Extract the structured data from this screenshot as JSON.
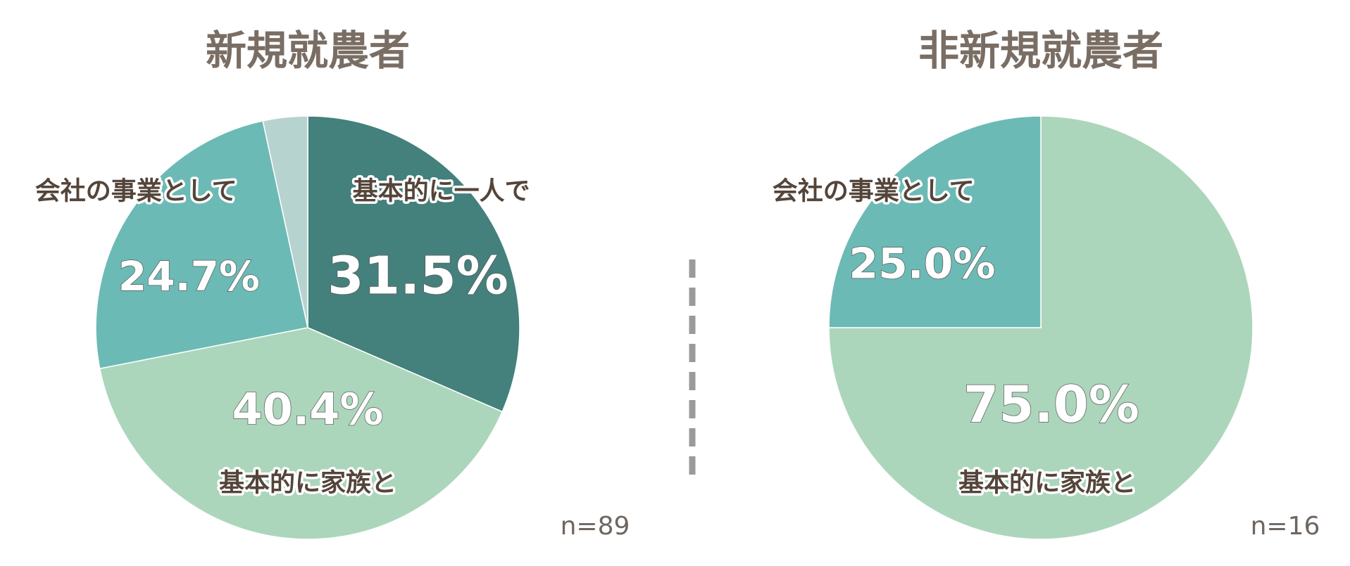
{
  "chart_data": [
    {
      "type": "pie",
      "title": "新規就農者",
      "categories": [
        "基本的に一人で",
        "基本的に家族と",
        "会社の事業として",
        null
      ],
      "values": [
        31.5,
        40.4,
        24.7,
        3.4
      ],
      "value_labels": [
        "31.5%",
        "40.4%",
        "24.7%",
        null
      ],
      "colors": [
        "#44807c",
        "#acd6bc",
        "#6cbab5",
        "#b7d3cf"
      ],
      "note": "n=89"
    },
    {
      "type": "pie",
      "title": "非新規就農者",
      "categories": [
        "基本的に家族と",
        "会社の事業として"
      ],
      "values": [
        75.0,
        25.0
      ],
      "value_labels": [
        "75.0%",
        "25.0%"
      ],
      "colors": [
        "#acd6bc",
        "#6cbab5"
      ],
      "note": "n=16"
    }
  ]
}
